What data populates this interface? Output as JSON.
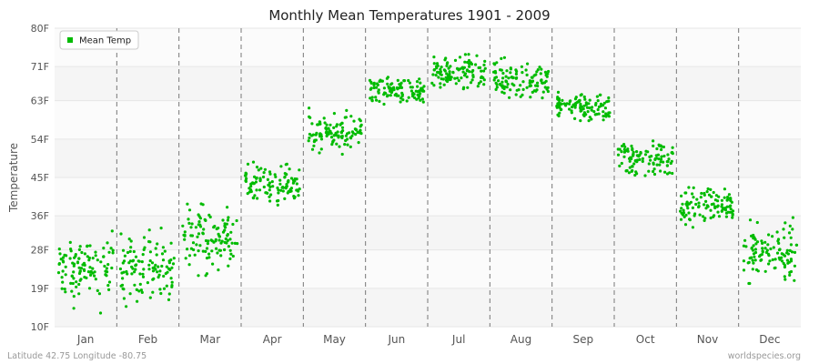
{
  "chart_data": {
    "type": "scatter",
    "title": "Monthly Mean Temperatures 1901 - 2009",
    "ylabel": "Temperature",
    "xlabel": "",
    "ylim": [
      10,
      80
    ],
    "yticks": [
      {
        "value": 10,
        "label": "10F"
      },
      {
        "value": 19,
        "label": "19F"
      },
      {
        "value": 28,
        "label": "28F"
      },
      {
        "value": 36,
        "label": "36F"
      },
      {
        "value": 45,
        "label": "45F"
      },
      {
        "value": 54,
        "label": "54F"
      },
      {
        "value": 63,
        "label": "63F"
      },
      {
        "value": 71,
        "label": "71F"
      },
      {
        "value": 80,
        "label": "80F"
      }
    ],
    "categories": [
      "Jan",
      "Feb",
      "Mar",
      "Apr",
      "May",
      "Jun",
      "Jul",
      "Aug",
      "Sep",
      "Oct",
      "Nov",
      "Dec"
    ],
    "series": [
      {
        "name": "Mean Temp",
        "color": "#00bb00",
        "years_per_month": 109,
        "monthly_mean": [
          23.5,
          23.5,
          31,
          43.5,
          55,
          65.5,
          69.5,
          68,
          61.5,
          49.5,
          38.5,
          27.5
        ],
        "monthly_range": [
          [
            10,
            35
          ],
          [
            10,
            37
          ],
          [
            22,
            44
          ],
          [
            36,
            51
          ],
          [
            48,
            63
          ],
          [
            60,
            71
          ],
          [
            64,
            76
          ],
          [
            63,
            74
          ],
          [
            57,
            67
          ],
          [
            42,
            57
          ],
          [
            32,
            45
          ],
          [
            16,
            36
          ]
        ]
      }
    ],
    "legend": {
      "position": "top-left",
      "label": "Mean Temp"
    },
    "grid": true,
    "month_separators": "dashed"
  },
  "footer": {
    "left": "Latitude 42.75 Longitude -80.75",
    "right": "worldspecies.org"
  }
}
